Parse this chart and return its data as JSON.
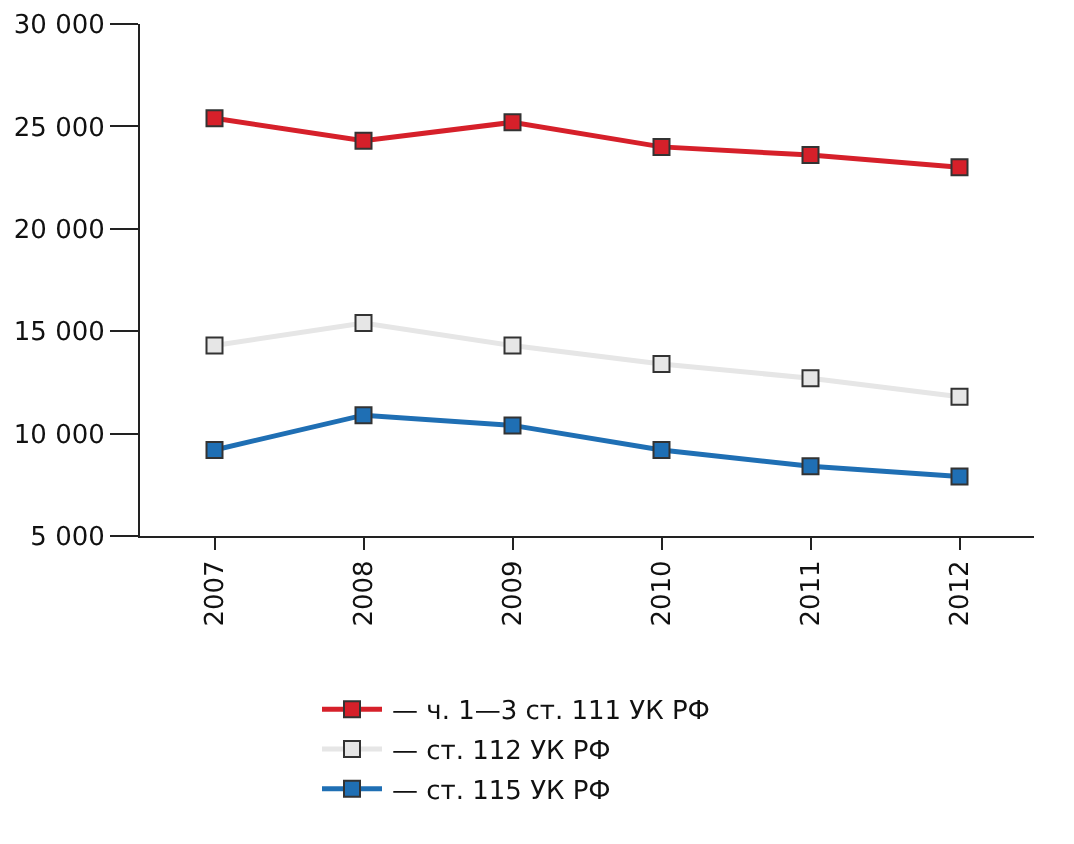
{
  "chart_data": {
    "type": "line",
    "categories": [
      "2007",
      "2008",
      "2009",
      "2010",
      "2011",
      "2012"
    ],
    "series": [
      {
        "name": "— ч. 1—3 ст. 111 УК РФ",
        "color": "#d6202a",
        "values": [
          25400,
          24300,
          25200,
          24000,
          23600,
          23000
        ]
      },
      {
        "name": "— ст. 112 УК РФ",
        "color": "#e6e6e6",
        "values": [
          14300,
          15400,
          14300,
          13400,
          12700,
          11800
        ]
      },
      {
        "name": "— ст. 115 УК РФ",
        "color": "#1f6fb4",
        "values": [
          9200,
          10900,
          10400,
          9200,
          8400,
          7900
        ]
      }
    ],
    "ylim": [
      5000,
      30000
    ],
    "yticks": [
      {
        "value": 5000,
        "label": "5 000"
      },
      {
        "value": 10000,
        "label": "10 000"
      },
      {
        "value": 15000,
        "label": "15 000"
      },
      {
        "value": 20000,
        "label": "20 000"
      },
      {
        "value": 25000,
        "label": "25 000"
      },
      {
        "value": 30000,
        "label": "30 000"
      }
    ],
    "grid": false,
    "legend": "bottom",
    "marker": "square",
    "line_style": "solid"
  }
}
